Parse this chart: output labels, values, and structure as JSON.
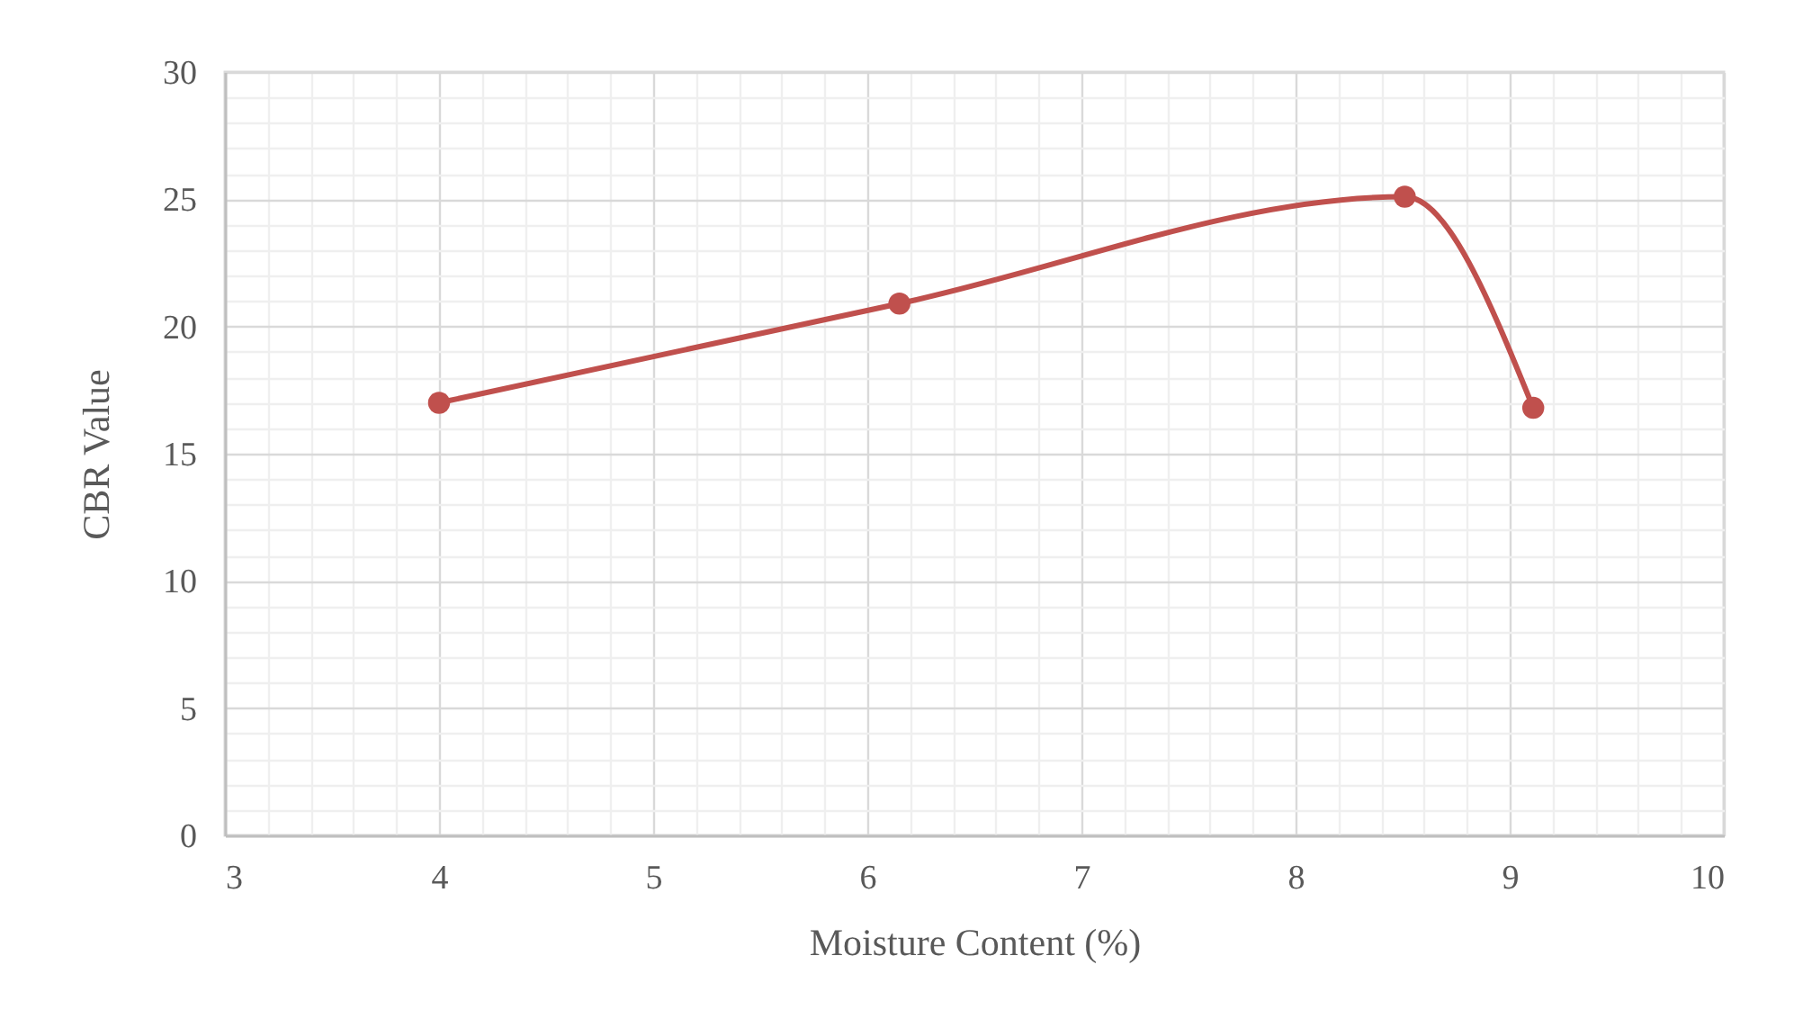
{
  "chart_data": {
    "type": "line",
    "xlabel": "Moisture Content (%)",
    "ylabel": "CBR Value",
    "x": [
      4,
      6.15,
      8.51,
      9.11
    ],
    "series": [
      {
        "color": "#c0504d",
        "values": [
          17.0,
          20.9,
          25.1,
          16.8
        ]
      }
    ],
    "xlim": [
      3,
      10
    ],
    "xticks": [
      3,
      4,
      5,
      6,
      7,
      8,
      9,
      10
    ],
    "ylim": [
      0,
      30
    ],
    "yticks": [
      0,
      5,
      10,
      15,
      20,
      25,
      30
    ],
    "grid": true,
    "marker": "circle"
  }
}
